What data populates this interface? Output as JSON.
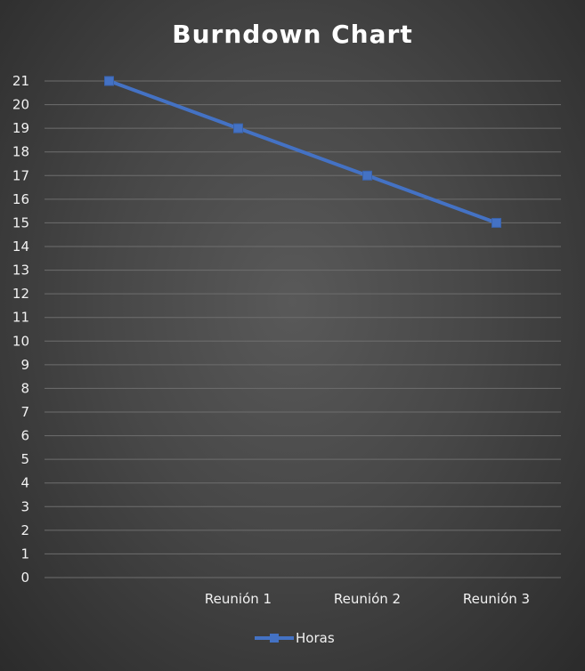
{
  "chart_data": {
    "type": "line",
    "title": "Burndown Chart",
    "categories": [
      "",
      "Reunión 1",
      "Reunión 2",
      "Reunión 3"
    ],
    "series": [
      {
        "name": "Horas",
        "values": [
          21,
          19,
          17,
          15
        ],
        "color": "#4472c4",
        "marker": "square"
      }
    ],
    "xlabel": "",
    "ylabel": "",
    "ylim": [
      0,
      21
    ],
    "yticks": [
      0,
      1,
      2,
      3,
      4,
      5,
      6,
      7,
      8,
      9,
      10,
      11,
      12,
      13,
      14,
      15,
      16,
      17,
      18,
      19,
      20,
      21
    ],
    "grid": true,
    "legend": "bottom-center"
  }
}
